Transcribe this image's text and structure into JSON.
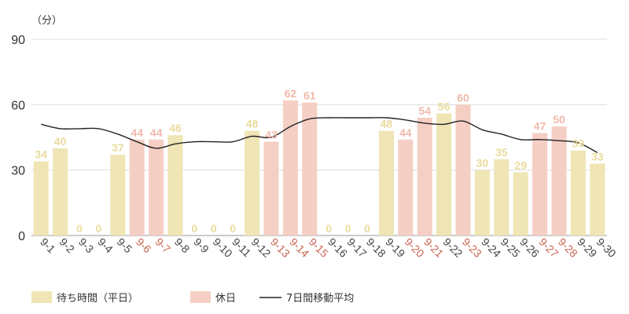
{
  "chart_data": {
    "type": "bar",
    "y_unit": "（分）",
    "ylim": [
      0,
      90
    ],
    "yticks": [
      "0",
      "30",
      "60",
      "90"
    ],
    "grid": true,
    "legend_placement": "bottom-left",
    "categories": [
      "9-1",
      "9-2",
      "9-3",
      "9-4",
      "9-5",
      "9-6",
      "9-7",
      "9-8",
      "9-9",
      "9-10",
      "9-11",
      "9-12",
      "9-13",
      "9-14",
      "9-15",
      "9-16",
      "9-17",
      "9-18",
      "9-19",
      "9-20",
      "9-21",
      "9-22",
      "9-23",
      "9-24",
      "9-25",
      "9-26",
      "9-27",
      "9-28",
      "9-29",
      "9-30"
    ],
    "day_type": [
      "weekday",
      "weekday",
      "weekday",
      "weekday",
      "weekday",
      "holiday",
      "holiday",
      "weekday",
      "weekday",
      "weekday",
      "weekday",
      "weekday",
      "holiday",
      "holiday",
      "holiday",
      "weekday",
      "weekday",
      "weekday",
      "weekday",
      "holiday",
      "holiday",
      "weekday",
      "holiday",
      "weekday",
      "weekday",
      "weekday",
      "holiday",
      "holiday",
      "weekday",
      "weekday"
    ],
    "series": [
      {
        "name": "待ち時間（平日）",
        "color": "#efe5b5",
        "label_color": "#eadb9d",
        "day_type": "weekday"
      },
      {
        "name": "休日",
        "color": "#f5cfc4",
        "label_color": "#f0b9ab",
        "day_type": "holiday"
      }
    ],
    "values": [
      34,
      40,
      0,
      0,
      37,
      44,
      44,
      46,
      0,
      0,
      0,
      48,
      43,
      62,
      61,
      0,
      0,
      0,
      48,
      44,
      54,
      56,
      60,
      30,
      35,
      29,
      47,
      50,
      39,
      33
    ],
    "line": {
      "name": "7日間移動平均",
      "color": "#222222",
      "values": [
        51,
        49,
        49,
        49,
        46.5,
        43,
        40,
        42,
        43,
        43,
        43,
        45.5,
        45,
        50,
        53.5,
        54,
        54,
        54,
        54,
        53,
        51.5,
        51,
        52.5,
        48.5,
        46.5,
        44,
        44,
        43.5,
        42.5,
        38
      ]
    },
    "x_label_colors": {
      "weekday": "#444444",
      "holiday": "#c8644f"
    }
  }
}
